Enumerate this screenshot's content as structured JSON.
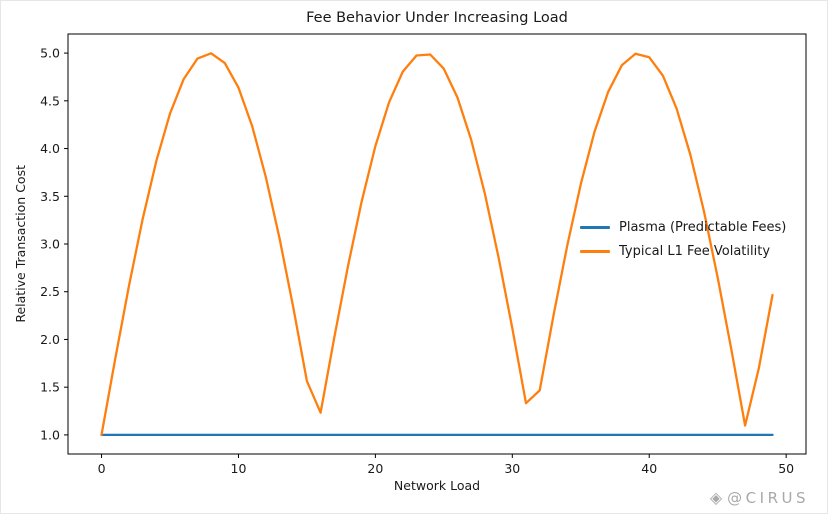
{
  "figure": {
    "title": "Fee Behavior Under Increasing Load",
    "xlabel": "Network Load",
    "ylabel": "Relative Transaction Cost"
  },
  "legend": {
    "items": [
      {
        "label": "Plasma (Predictable Fees)",
        "color": "#1f77b4"
      },
      {
        "label": "Typical L1 Fee Volatility",
        "color": "#ff7f0e"
      }
    ]
  },
  "watermark": {
    "icon": "gem-icon",
    "text": "@CIRUS"
  },
  "chart_data": {
    "type": "line",
    "title": "Fee Behavior Under Increasing Load",
    "xlabel": "Network Load",
    "ylabel": "Relative Transaction Cost",
    "grid": false,
    "legend_position": "center right",
    "xlim": [
      -2.45,
      51.45
    ],
    "ylim": [
      0.8,
      5.2
    ],
    "x_ticks": [
      0,
      10,
      20,
      30,
      40,
      50
    ],
    "x_tick_labels": [
      "0",
      "10",
      "20",
      "30",
      "40",
      "50"
    ],
    "y_ticks": [
      1.0,
      1.5,
      2.0,
      2.5,
      3.0,
      3.5,
      4.0,
      4.5,
      5.0
    ],
    "y_tick_labels": [
      "1.0",
      "1.5",
      "2.0",
      "2.5",
      "3.0",
      "3.5",
      "4.0",
      "4.5",
      "5.0"
    ],
    "x": [
      0,
      1,
      2,
      3,
      4,
      5,
      6,
      7,
      8,
      9,
      10,
      11,
      12,
      13,
      14,
      15,
      16,
      17,
      18,
      19,
      20,
      21,
      22,
      23,
      24,
      25,
      26,
      27,
      28,
      29,
      30,
      31,
      32,
      33,
      34,
      35,
      36,
      37,
      38,
      39,
      40,
      41,
      42,
      43,
      44,
      45,
      46,
      47,
      48,
      49
    ],
    "series": [
      {
        "name": "Plasma (Predictable Fees)",
        "color": "#1f77b4",
        "constant": 1.0
      },
      {
        "name": "Typical L1 Fee Volatility",
        "color": "#ff7f0e",
        "values": [
          1.0,
          1.795,
          2.558,
          3.259,
          3.869,
          4.366,
          4.728,
          4.942,
          4.998,
          4.895,
          4.637,
          4.234,
          3.702,
          3.062,
          2.34,
          1.564,
          1.233,
          2.022,
          2.77,
          3.447,
          4.027,
          4.486,
          4.806,
          4.975,
          4.985,
          4.836,
          4.534,
          4.091,
          3.525,
          2.858,
          2.118,
          1.332,
          1.466,
          2.246,
          2.976,
          3.628,
          4.175,
          4.595,
          4.872,
          4.994,
          4.957,
          4.763,
          4.418,
          3.938,
          3.34,
          2.648,
          1.892,
          1.099,
          1.697,
          2.466
        ]
      }
    ]
  }
}
